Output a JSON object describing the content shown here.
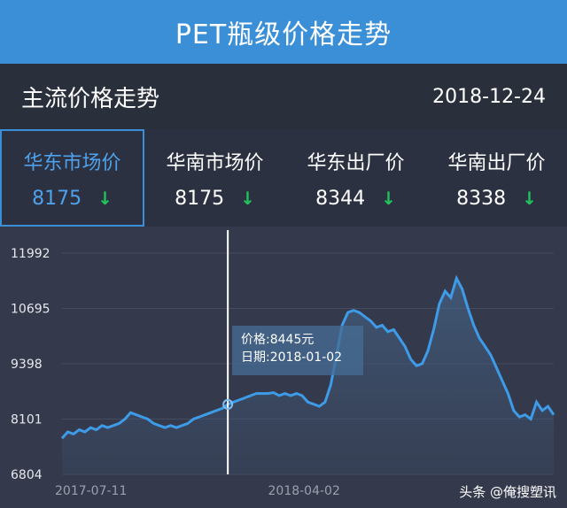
{
  "title": "PET瓶级价格走势",
  "header": {
    "label": "主流价格走势",
    "date": "2018-12-24"
  },
  "tabs": [
    {
      "name": "华东市场价",
      "price": "8175",
      "trend": "↓"
    },
    {
      "name": "华南市场价",
      "price": "8175",
      "trend": "↓"
    },
    {
      "name": "华东出厂价",
      "price": "8344",
      "trend": "↓"
    },
    {
      "name": "华南出厂价",
      "price": "8338",
      "trend": "↓"
    }
  ],
  "tooltip": {
    "price": "价格:8445元",
    "date": "日期:2018-01-02"
  },
  "watermark": "头条 @俺搜塑讯",
  "colors": {
    "accent": "#3a8fd6",
    "line": "#3e9be8",
    "down": "#20c35c"
  },
  "chart_data": {
    "type": "area",
    "title": "",
    "xlabel": "",
    "ylabel": "",
    "yticks": [
      "11992",
      "10695",
      "9398",
      "8101",
      "6804"
    ],
    "ylim": [
      6804,
      11992
    ],
    "xticks": [
      "2017-07-11",
      "2018-04-02"
    ],
    "cursor_index": 29,
    "series": [
      {
        "values": [
          7650,
          7800,
          7750,
          7850,
          7800,
          7900,
          7850,
          7950,
          7900,
          7950,
          8000,
          8100,
          8250,
          8200,
          8150,
          8100,
          8000,
          7950,
          7900,
          7950,
          7900,
          7950,
          8000,
          8100,
          8150,
          8200,
          8250,
          8300,
          8350,
          8445,
          8500,
          8550,
          8600,
          8650,
          8700,
          8700,
          8700,
          8720,
          8650,
          8700,
          8650,
          8700,
          8650,
          8500,
          8450,
          8400,
          8500,
          8900,
          9600,
          10300,
          10600,
          10650,
          10600,
          10500,
          10400,
          10250,
          10300,
          10150,
          10200,
          10000,
          9800,
          9500,
          9350,
          9400,
          9700,
          10200,
          10800,
          11100,
          10950,
          11400,
          11150,
          10700,
          10300,
          10000,
          9800,
          9600,
          9300,
          9000,
          8700,
          8300,
          8150,
          8200,
          8100,
          8500,
          8300,
          8400,
          8200
        ]
      }
    ]
  }
}
